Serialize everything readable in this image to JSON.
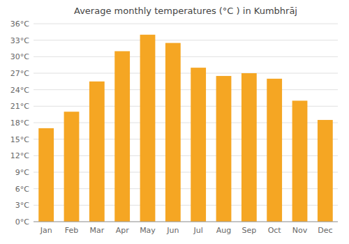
{
  "chart_data": {
    "type": "bar",
    "title": "Average monthly temperatures (°C ) in Kumbhrāj",
    "categories": [
      "Jan",
      "Feb",
      "Mar",
      "Apr",
      "May",
      "Jun",
      "Jul",
      "Aug",
      "Sep",
      "Oct",
      "Nov",
      "Dec"
    ],
    "values": [
      17.0,
      20.0,
      25.5,
      31.0,
      34.0,
      32.5,
      28.0,
      26.5,
      27.0,
      26.0,
      22.0,
      18.5
    ],
    "color": "#F5A623",
    "ylim": [
      0,
      36
    ],
    "yticks": [
      {
        "value": 0,
        "label": "0°C"
      },
      {
        "value": 3,
        "label": "3°C"
      },
      {
        "value": 6,
        "label": "6°C"
      },
      {
        "value": 9,
        "label": "9°C"
      },
      {
        "value": 12,
        "label": "12°C"
      },
      {
        "value": 15,
        "label": "15°C"
      },
      {
        "value": 18,
        "label": "18°C"
      },
      {
        "value": 21,
        "label": "21°C"
      },
      {
        "value": 24,
        "label": "24°C"
      },
      {
        "value": 27,
        "label": "27°C"
      },
      {
        "value": 30,
        "label": "30°C"
      },
      {
        "value": 33,
        "label": "33°C"
      },
      {
        "value": 36,
        "label": "36°C"
      }
    ],
    "grid": true
  }
}
